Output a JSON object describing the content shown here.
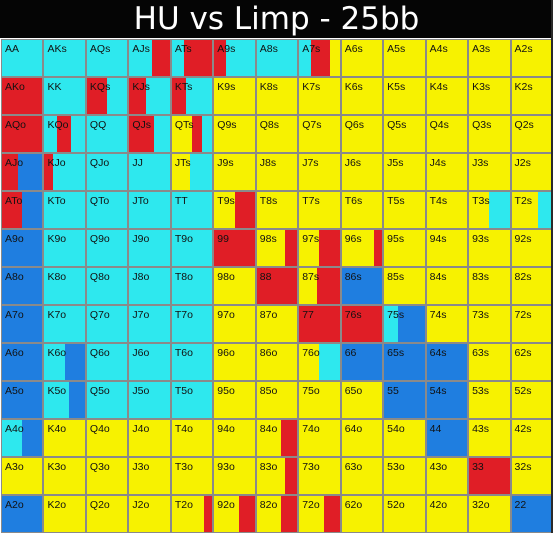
{
  "header": {
    "title": "HU vs Limp - 25bb"
  },
  "chart_data": {
    "type": "heatmap",
    "title": "HU vs Limp - 25bb",
    "ranks": [
      "A",
      "K",
      "Q",
      "J",
      "T",
      "9",
      "8",
      "7",
      "6",
      "5",
      "4",
      "3",
      "2"
    ],
    "colors": {
      "c": "#2ee8ee",
      "r": "#e01e26",
      "b": "#1f7ee0",
      "y": "#f7f200"
    },
    "hands": [
      [
        "AA",
        "AKs",
        "AQs",
        "AJs",
        "ATs",
        "A9s",
        "A8s",
        "A7s",
        "A6s",
        "A5s",
        "A4s",
        "A3s",
        "A2s"
      ],
      [
        "AKo",
        "KK",
        "KQs",
        "KJs",
        "KTs",
        "K9s",
        "K8s",
        "K7s",
        "K6s",
        "K5s",
        "K4s",
        "K3s",
        "K2s"
      ],
      [
        "AQo",
        "KQo",
        "QQ",
        "QJs",
        "QTs",
        "Q9s",
        "Q8s",
        "Q7s",
        "Q6s",
        "Q5s",
        "Q4s",
        "Q3s",
        "Q2s"
      ],
      [
        "AJo",
        "KJo",
        "QJo",
        "JJ",
        "JTs",
        "J9s",
        "J8s",
        "J7s",
        "J6s",
        "J5s",
        "J4s",
        "J3s",
        "J2s"
      ],
      [
        "ATo",
        "KTo",
        "QTo",
        "JTo",
        "TT",
        "T9s",
        "T8s",
        "T7s",
        "T6s",
        "T5s",
        "T4s",
        "T3s",
        "T2s"
      ],
      [
        "A9o",
        "K9o",
        "Q9o",
        "J9o",
        "T9o",
        "99",
        "98s",
        "97s",
        "96s",
        "95s",
        "94s",
        "93s",
        "92s"
      ],
      [
        "A8o",
        "K8o",
        "Q8o",
        "J8o",
        "T8o",
        "98o",
        "88",
        "87s",
        "86s",
        "85s",
        "84s",
        "83s",
        "82s"
      ],
      [
        "A7o",
        "K7o",
        "Q7o",
        "J7o",
        "T7o",
        "97o",
        "87o",
        "77",
        "76s",
        "75s",
        "74s",
        "73s",
        "72s"
      ],
      [
        "A6o",
        "K6o",
        "Q6o",
        "J6o",
        "T6o",
        "96o",
        "86o",
        "76o",
        "66",
        "65s",
        "64s",
        "63s",
        "62s"
      ],
      [
        "A5o",
        "K5o",
        "Q5o",
        "J5o",
        "T5o",
        "95o",
        "85o",
        "75o",
        "65o",
        "55",
        "54s",
        "53s",
        "52s"
      ],
      [
        "A4o",
        "K4o",
        "Q4o",
        "J4o",
        "T4o",
        "94o",
        "84o",
        "74o",
        "64o",
        "54o",
        "44",
        "43s",
        "42s"
      ],
      [
        "A3o",
        "K3o",
        "Q3o",
        "J3o",
        "T3o",
        "93o",
        "83o",
        "73o",
        "63o",
        "53o",
        "43o",
        "33",
        "32s"
      ],
      [
        "A2o",
        "K2o",
        "Q2o",
        "J2o",
        "T2o",
        "92o",
        "82o",
        "72o",
        "62o",
        "52o",
        "42o",
        "32o",
        "22"
      ]
    ],
    "strategy": [
      [
        [
          [
            "c",
            1
          ]
        ],
        [
          [
            "c",
            1
          ]
        ],
        [
          [
            "c",
            1
          ]
        ],
        [
          [
            "c",
            0.55
          ],
          [
            "r",
            0.45
          ]
        ],
        [
          [
            "c",
            0.3
          ],
          [
            "r",
            0.7
          ]
        ],
        [
          [
            "r",
            0.3
          ],
          [
            "c",
            0.7
          ]
        ],
        [
          [
            "c",
            1
          ]
        ],
        [
          [
            "c",
            0.3
          ],
          [
            "r",
            0.45
          ],
          [
            "y",
            0.25
          ]
        ],
        [
          [
            "y",
            1
          ]
        ],
        [
          [
            "y",
            1
          ]
        ],
        [
          [
            "y",
            1
          ]
        ],
        [
          [
            "y",
            1
          ]
        ],
        [
          [
            "y",
            1
          ]
        ]
      ],
      [
        [
          [
            "r",
            1
          ]
        ],
        [
          [
            "c",
            1
          ]
        ],
        [
          [
            "r",
            0.5
          ],
          [
            "c",
            0.5
          ]
        ],
        [
          [
            "r",
            0.4
          ],
          [
            "c",
            0.6
          ]
        ],
        [
          [
            "r",
            0.35
          ],
          [
            "c",
            0.65
          ]
        ],
        [
          [
            "y",
            1
          ]
        ],
        [
          [
            "y",
            1
          ]
        ],
        [
          [
            "y",
            1
          ]
        ],
        [
          [
            "y",
            1
          ]
        ],
        [
          [
            "y",
            1
          ]
        ],
        [
          [
            "y",
            1
          ]
        ],
        [
          [
            "y",
            1
          ]
        ],
        [
          [
            "y",
            1
          ]
        ]
      ],
      [
        [
          [
            "r",
            1
          ]
        ],
        [
          [
            "c",
            0.3
          ],
          [
            "r",
            0.35
          ],
          [
            "c",
            0.35
          ]
        ],
        [
          [
            "c",
            1
          ]
        ],
        [
          [
            "r",
            0.6
          ],
          [
            "c",
            0.4
          ]
        ],
        [
          [
            "y",
            0.5
          ],
          [
            "r",
            0.25
          ],
          [
            "c",
            0.25
          ]
        ],
        [
          [
            "y",
            1
          ]
        ],
        [
          [
            "y",
            1
          ]
        ],
        [
          [
            "y",
            1
          ]
        ],
        [
          [
            "y",
            1
          ]
        ],
        [
          [
            "y",
            1
          ]
        ],
        [
          [
            "y",
            1
          ]
        ],
        [
          [
            "y",
            1
          ]
        ],
        [
          [
            "y",
            1
          ]
        ]
      ],
      [
        [
          [
            "r",
            0.4
          ],
          [
            "b",
            0.6
          ]
        ],
        [
          [
            "r",
            0.2
          ],
          [
            "c",
            0.8
          ]
        ],
        [
          [
            "c",
            1
          ]
        ],
        [
          [
            "c",
            1
          ]
        ],
        [
          [
            "y",
            0.45
          ],
          [
            "c",
            0.55
          ]
        ],
        [
          [
            "y",
            1
          ]
        ],
        [
          [
            "y",
            1
          ]
        ],
        [
          [
            "y",
            1
          ]
        ],
        [
          [
            "y",
            1
          ]
        ],
        [
          [
            "y",
            1
          ]
        ],
        [
          [
            "y",
            1
          ]
        ],
        [
          [
            "y",
            1
          ]
        ],
        [
          [
            "y",
            1
          ]
        ]
      ],
      [
        [
          [
            "r",
            0.5
          ],
          [
            "b",
            0.5
          ]
        ],
        [
          [
            "c",
            1
          ]
        ],
        [
          [
            "c",
            1
          ]
        ],
        [
          [
            "c",
            1
          ]
        ],
        [
          [
            "c",
            1
          ]
        ],
        [
          [
            "y",
            0.5
          ],
          [
            "r",
            0.5
          ]
        ],
        [
          [
            "y",
            1
          ]
        ],
        [
          [
            "y",
            1
          ]
        ],
        [
          [
            "y",
            1
          ]
        ],
        [
          [
            "y",
            1
          ]
        ],
        [
          [
            "y",
            1
          ]
        ],
        [
          [
            "y",
            0.5
          ],
          [
            "c",
            0.5
          ]
        ],
        [
          [
            "y",
            0.65
          ],
          [
            "c",
            0.35
          ]
        ]
      ],
      [
        [
          [
            "b",
            1
          ]
        ],
        [
          [
            "c",
            1
          ]
        ],
        [
          [
            "c",
            1
          ]
        ],
        [
          [
            "c",
            1
          ]
        ],
        [
          [
            "c",
            1
          ]
        ],
        [
          [
            "r",
            1
          ]
        ],
        [
          [
            "y",
            0.7
          ],
          [
            "r",
            0.3
          ]
        ],
        [
          [
            "y",
            0.5
          ],
          [
            "r",
            0.5
          ]
        ],
        [
          [
            "y",
            0.8
          ],
          [
            "r",
            0.2
          ]
        ],
        [
          [
            "y",
            1
          ]
        ],
        [
          [
            "y",
            1
          ]
        ],
        [
          [
            "y",
            1
          ]
        ],
        [
          [
            "y",
            1
          ]
        ]
      ],
      [
        [
          [
            "b",
            1
          ]
        ],
        [
          [
            "c",
            1
          ]
        ],
        [
          [
            "c",
            1
          ]
        ],
        [
          [
            "c",
            1
          ]
        ],
        [
          [
            "c",
            1
          ]
        ],
        [
          [
            "y",
            1
          ]
        ],
        [
          [
            "r",
            1
          ]
        ],
        [
          [
            "y",
            0.45
          ],
          [
            "r",
            0.55
          ]
        ],
        [
          [
            "b",
            1
          ]
        ],
        [
          [
            "y",
            1
          ]
        ],
        [
          [
            "y",
            1
          ]
        ],
        [
          [
            "y",
            1
          ]
        ],
        [
          [
            "y",
            1
          ]
        ]
      ],
      [
        [
          [
            "b",
            1
          ]
        ],
        [
          [
            "c",
            1
          ]
        ],
        [
          [
            "c",
            1
          ]
        ],
        [
          [
            "c",
            1
          ]
        ],
        [
          [
            "c",
            1
          ]
        ],
        [
          [
            "y",
            1
          ]
        ],
        [
          [
            "y",
            1
          ]
        ],
        [
          [
            "r",
            1
          ]
        ],
        [
          [
            "r",
            1
          ]
        ],
        [
          [
            "c",
            0.35
          ],
          [
            "b",
            0.65
          ]
        ],
        [
          [
            "y",
            1
          ]
        ],
        [
          [
            "y",
            1
          ]
        ],
        [
          [
            "y",
            1
          ]
        ]
      ],
      [
        [
          [
            "b",
            1
          ]
        ],
        [
          [
            "c",
            0.5
          ],
          [
            "b",
            0.5
          ]
        ],
        [
          [
            "c",
            1
          ]
        ],
        [
          [
            "c",
            1
          ]
        ],
        [
          [
            "c",
            1
          ]
        ],
        [
          [
            "y",
            1
          ]
        ],
        [
          [
            "y",
            1
          ]
        ],
        [
          [
            "y",
            0.5
          ],
          [
            "c",
            0.5
          ]
        ],
        [
          [
            "b",
            1
          ]
        ],
        [
          [
            "b",
            1
          ]
        ],
        [
          [
            "b",
            1
          ]
        ],
        [
          [
            "y",
            1
          ]
        ],
        [
          [
            "y",
            1
          ]
        ]
      ],
      [
        [
          [
            "b",
            1
          ]
        ],
        [
          [
            "c",
            0.6
          ],
          [
            "b",
            0.4
          ]
        ],
        [
          [
            "c",
            1
          ]
        ],
        [
          [
            "c",
            1
          ]
        ],
        [
          [
            "c",
            1
          ]
        ],
        [
          [
            "y",
            1
          ]
        ],
        [
          [
            "y",
            1
          ]
        ],
        [
          [
            "y",
            1
          ]
        ],
        [
          [
            "y",
            1
          ]
        ],
        [
          [
            "b",
            1
          ]
        ],
        [
          [
            "b",
            1
          ]
        ],
        [
          [
            "y",
            1
          ]
        ],
        [
          [
            "y",
            1
          ]
        ]
      ],
      [
        [
          [
            "c",
            0.5
          ],
          [
            "b",
            0.5
          ]
        ],
        [
          [
            "y",
            1
          ]
        ],
        [
          [
            "y",
            1
          ]
        ],
        [
          [
            "y",
            1
          ]
        ],
        [
          [
            "y",
            1
          ]
        ],
        [
          [
            "y",
            1
          ]
        ],
        [
          [
            "y",
            0.6
          ],
          [
            "r",
            0.4
          ]
        ],
        [
          [
            "y",
            1
          ]
        ],
        [
          [
            "y",
            1
          ]
        ],
        [
          [
            "y",
            1
          ]
        ],
        [
          [
            "b",
            1
          ]
        ],
        [
          [
            "y",
            1
          ]
        ],
        [
          [
            "y",
            1
          ]
        ]
      ],
      [
        [
          [
            "y",
            1
          ]
        ],
        [
          [
            "y",
            1
          ]
        ],
        [
          [
            "y",
            1
          ]
        ],
        [
          [
            "y",
            1
          ]
        ],
        [
          [
            "y",
            1
          ]
        ],
        [
          [
            "y",
            1
          ]
        ],
        [
          [
            "y",
            0.7
          ],
          [
            "r",
            0.3
          ]
        ],
        [
          [
            "y",
            1
          ]
        ],
        [
          [
            "y",
            1
          ]
        ],
        [
          [
            "y",
            1
          ]
        ],
        [
          [
            "y",
            1
          ]
        ],
        [
          [
            "r",
            1
          ]
        ],
        [
          [
            "y",
            1
          ]
        ]
      ],
      [
        [
          [
            "b",
            1
          ]
        ],
        [
          [
            "y",
            1
          ]
        ],
        [
          [
            "y",
            1
          ]
        ],
        [
          [
            "y",
            1
          ]
        ],
        [
          [
            "y",
            0.8
          ],
          [
            "r",
            0.2
          ]
        ],
        [
          [
            "y",
            0.6
          ],
          [
            "r",
            0.4
          ]
        ],
        [
          [
            "y",
            0.6
          ],
          [
            "r",
            0.4
          ]
        ],
        [
          [
            "y",
            0.6
          ],
          [
            "r",
            0.4
          ]
        ],
        [
          [
            "y",
            1
          ]
        ],
        [
          [
            "y",
            1
          ]
        ],
        [
          [
            "y",
            1
          ]
        ],
        [
          [
            "y",
            1
          ]
        ],
        [
          [
            "b",
            1
          ]
        ]
      ]
    ]
  }
}
